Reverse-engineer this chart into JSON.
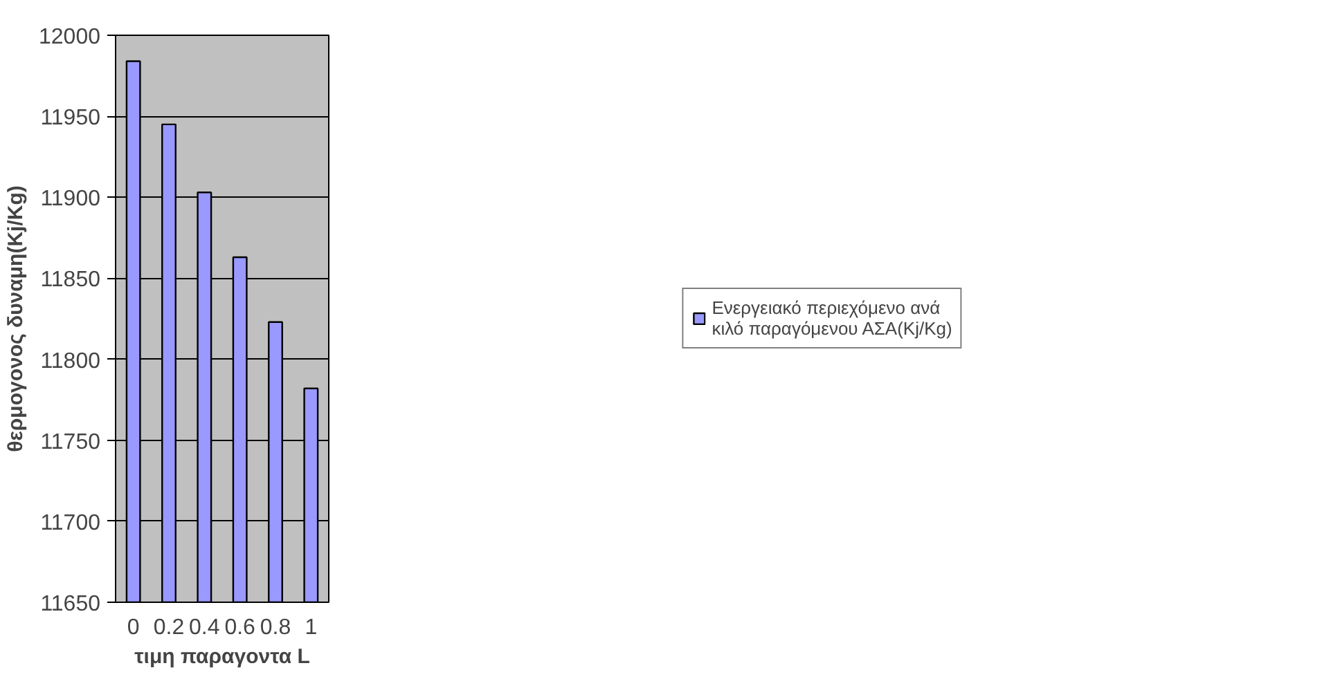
{
  "chart_data": {
    "type": "bar",
    "xlabel": "τιμη παραγοντα L",
    "ylabel": "θερμογονος δυναμη(Kj/Kg)",
    "categories": [
      "0",
      "0.2",
      "0.4",
      "0.6",
      "0.8",
      "1"
    ],
    "series": [
      {
        "name": "Ενεργειακό περιεχόμενο ανά κιλό παραγόμενου ΑΣΑ(Kj/Kg)",
        "color": "#9999ff",
        "values": [
          11984,
          11945,
          11903,
          11863,
          11823,
          11782
        ]
      }
    ],
    "ylim": [
      11650,
      12000
    ],
    "yticks": [
      11650,
      11700,
      11750,
      11800,
      11850,
      11900,
      11950,
      12000
    ],
    "grid": "y",
    "legend": "right"
  }
}
